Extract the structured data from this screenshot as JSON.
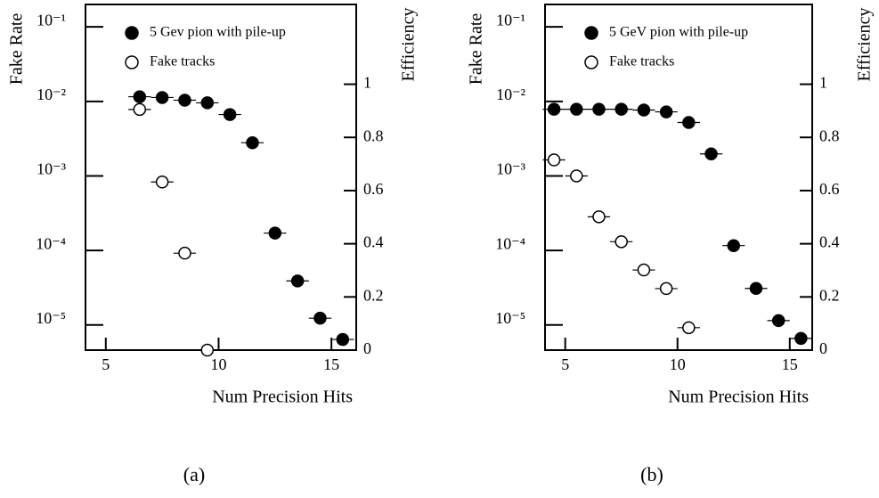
{
  "chart_data": [
    {
      "type": "scatter",
      "caption": "(a)",
      "xlabel": "Num Precision Hits",
      "ylabel": "Fake Rate",
      "y2label": "Efficiency",
      "xlim": [
        4.1,
        16.1
      ],
      "xticks": [
        5,
        10,
        15
      ],
      "ylim": [
        4.6e-06,
        0.2
      ],
      "ylog": true,
      "yticks": [
        {
          "value": 0.1,
          "label": "10⁻¹"
        },
        {
          "value": 0.01,
          "label": "10⁻²"
        },
        {
          "value": 0.001,
          "label": "10⁻³"
        },
        {
          "value": 0.0001,
          "label": "10⁻⁴"
        },
        {
          "value": 1e-05,
          "label": "10⁻⁵"
        }
      ],
      "y2lim": [
        0,
        1.3
      ],
      "y2ticks": [
        0,
        0.2,
        0.4,
        0.6,
        0.8,
        1
      ],
      "series": [
        {
          "name": "5 Gev pion with pile-up",
          "color": "#000000",
          "marker": "filled",
          "axis": "y2",
          "x": [
            6.5,
            7.5,
            8.5,
            9.5,
            10.5,
            11.5,
            12.5,
            13.5,
            14.5,
            15.5
          ],
          "values": [
            0.953,
            0.95,
            0.94,
            0.93,
            0.886,
            0.78,
            0.44,
            0.26,
            0.12,
            0.04
          ]
        },
        {
          "name": "Fake tracks",
          "color": "#000000",
          "marker": "open",
          "axis": "y",
          "x": [
            6.5,
            7.5,
            8.5,
            9.5
          ],
          "values": [
            0.0078,
            0.00083,
            9.2e-05,
            4.6e-06
          ]
        }
      ]
    },
    {
      "type": "scatter",
      "caption": "(b)",
      "xlabel": "Num Precision Hits",
      "ylabel": "Fake Rate",
      "y2label": "Efficiency",
      "xlim": [
        4.1,
        16.0
      ],
      "xticks": [
        5,
        10,
        15
      ],
      "ylim": [
        4.6e-06,
        0.2
      ],
      "ylog": true,
      "yticks": [
        {
          "value": 0.1,
          "label": "10⁻¹"
        },
        {
          "value": 0.01,
          "label": "10⁻²"
        },
        {
          "value": 0.001,
          "label": "10⁻³"
        },
        {
          "value": 0.0001,
          "label": "10⁻⁴"
        },
        {
          "value": 1e-05,
          "label": "10⁻⁵"
        }
      ],
      "y2lim": [
        0,
        1.3
      ],
      "y2ticks": [
        0,
        0.2,
        0.4,
        0.6,
        0.8,
        1
      ],
      "series": [
        {
          "name": "5 GeV pion with pile-up",
          "color": "#000000",
          "marker": "filled",
          "axis": "y2",
          "x": [
            4.5,
            5.5,
            6.5,
            7.5,
            8.5,
            9.5,
            10.5,
            11.5,
            12.5,
            13.5,
            14.5,
            15.5
          ],
          "values": [
            0.906,
            0.906,
            0.906,
            0.906,
            0.903,
            0.896,
            0.856,
            0.738,
            0.393,
            0.232,
            0.111,
            0.044
          ]
        },
        {
          "name": "Fake tracks",
          "color": "#000000",
          "marker": "open",
          "axis": "y",
          "x": [
            4.5,
            5.5,
            6.5,
            7.5,
            8.5,
            9.5,
            10.5
          ],
          "values": [
            0.00164,
            0.001,
            0.000283,
            0.000131,
            5.47e-05,
            3.08e-05,
            9.2e-06
          ]
        }
      ]
    }
  ]
}
